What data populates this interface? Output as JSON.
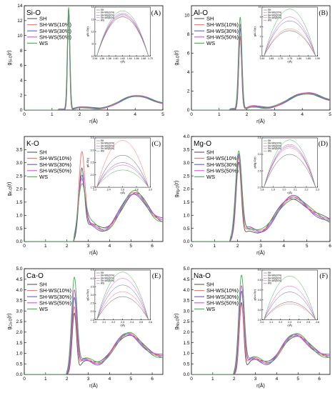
{
  "series_styles": [
    {
      "name": "SH",
      "color": "#555555"
    },
    {
      "name": "SH-WS(10%)",
      "color": "#ff6b6b"
    },
    {
      "name": "SH-WS(30%)",
      "color": "#5b5bd6"
    },
    {
      "name": "SH-WS(50%)",
      "color": "#e04ae0"
    },
    {
      "name": "WS",
      "color": "#3cb34a"
    }
  ],
  "chart_data": [
    {
      "type": "line",
      "panel_id": "(A)",
      "element_label": "Si-O",
      "xlabel": "r(Å)",
      "ylabel": "gSi-O(r)",
      "xlim": [
        0,
        5
      ],
      "ylim": [
        0,
        14
      ],
      "xticks": [
        0,
        1,
        2,
        3,
        4,
        5
      ],
      "yticks": [
        0,
        2,
        4,
        6,
        8,
        10,
        12,
        14
      ],
      "peak": {
        "r": 1.6,
        "heights": [
          13.2,
          13.3,
          13.4,
          13.5,
          13.7
        ],
        "width": 0.06
      },
      "features": {
        "min_r": 2.9,
        "min_g": 0.3,
        "second_r": 4.1,
        "second_g": 1.7
      },
      "inset": {
        "xlabel": "r(Å)",
        "ylabel": "gSi-O(r)",
        "xlim": [
          1.54,
          1.7
        ],
        "ylim": [
          10,
          14
        ],
        "xticks": [
          "1.54",
          "1.56",
          "1.58",
          "1.60",
          "1.62",
          "1.64",
          "1.66",
          "1.68",
          "1.70"
        ],
        "yticks": [
          "10",
          "11",
          "12",
          "13",
          "14"
        ],
        "legend": [
          "SH",
          "SH-WS(10%)",
          "SH-WS(30%)",
          "SH-WS(50%)",
          "WS"
        ]
      }
    },
    {
      "type": "line",
      "panel_id": "(B)",
      "element_label": "Al-O",
      "xlabel": "r(Å)",
      "ylabel": "gAl-O(r)",
      "xlim": [
        0,
        5
      ],
      "ylim": [
        0,
        11
      ],
      "xticks": [
        0,
        1,
        2,
        3,
        4,
        5
      ],
      "yticks": [
        0,
        2,
        4,
        6,
        8,
        10
      ],
      "peak": {
        "r": 1.76,
        "heights": [
          7.6,
          7.8,
          8.6,
          9.0,
          9.8
        ],
        "width": 0.08
      },
      "features": {
        "min_r": 2.9,
        "min_g": 0.35,
        "second_r": 4.2,
        "second_g": 1.55
      },
      "inset": {
        "xlabel": "r(Å)",
        "ylabel": "gAl-O(r)",
        "xlim": [
          1.6,
          1.9
        ],
        "ylim": [
          5,
          10
        ],
        "xticks": [
          "1.60",
          "1.65",
          "1.70",
          "1.75",
          "1.80",
          "1.85",
          "1.90"
        ],
        "yticks": [
          "5",
          "6",
          "7",
          "8",
          "9",
          "10"
        ],
        "legend": [
          "SH",
          "SH-WS(10%)",
          "SH-WS(30%)",
          "SH-WS(50%)",
          "WS"
        ]
      }
    },
    {
      "type": "line",
      "panel_id": "(C)",
      "element_label": "K-O",
      "xlabel": "r(Å)",
      "ylabel": "gK-O(r)",
      "xlim": [
        0,
        6.5
      ],
      "ylim": [
        0,
        4
      ],
      "xticks": [
        0,
        1,
        2,
        3,
        4,
        5,
        6
      ],
      "yticks": [
        0,
        0.5,
        1.0,
        1.5,
        2.0,
        2.5,
        3.0,
        3.5
      ],
      "peak": {
        "r": 2.7,
        "heights": [
          2.8,
          3.4,
          2.5,
          2.4,
          2.2
        ],
        "width": 0.22
      },
      "features": {
        "min_r": 3.7,
        "min_g": 0.5,
        "second_r": 5.1,
        "second_g": 1.4
      },
      "inset": {
        "xlabel": "r(Å)",
        "ylabel": "gK-O(r)",
        "xlim": [
          2.2,
          3.0
        ],
        "ylim": [
          1.5,
          3.5
        ],
        "xticks": [
          "2.2",
          "2.4",
          "2.6",
          "2.8",
          "3.0"
        ],
        "yticks": [
          "1.5",
          "2.0",
          "2.5",
          "3.0",
          "3.5"
        ],
        "legend": [
          "SH",
          "SH-WS(10%)",
          "SH-WS(30%)",
          "SH-WS(50%)",
          "WS"
        ]
      }
    },
    {
      "type": "line",
      "panel_id": "(D)",
      "element_label": "Mg-O",
      "xlabel": "r(Å)",
      "ylabel": "gMg-O(r)",
      "xlim": [
        0,
        6
      ],
      "ylim": [
        0,
        4
      ],
      "xticks": [
        0,
        1,
        2,
        3,
        4,
        5,
        6
      ],
      "yticks": [
        0,
        0.5,
        1.0,
        1.5,
        2.0,
        2.5,
        3.0,
        3.5,
        4.0
      ],
      "peak": {
        "r": 2.05,
        "heights": [
          3.0,
          3.2,
          3.25,
          3.3,
          3.45
        ],
        "width": 0.18
      },
      "features": {
        "min_r": 3.1,
        "min_g": 0.45,
        "second_r": 4.4,
        "second_g": 1.4
      },
      "inset": {
        "xlabel": "r(Å)",
        "ylabel": "gMg-O(r)",
        "xlim": [
          1.8,
          2.3
        ],
        "ylim": [
          2.0,
          3.5
        ],
        "xticks": [
          "1.8",
          "1.9",
          "2.0",
          "2.1",
          "2.2",
          "2.3"
        ],
        "yticks": [
          "2.0",
          "2.5",
          "3.0",
          "3.5"
        ],
        "legend": [
          "SH",
          "SH-WS(10%)",
          "SH-WS(30%)",
          "SH-WS(50%)",
          "WS"
        ]
      }
    },
    {
      "type": "line",
      "panel_id": "(E)",
      "element_label": "Ca-O",
      "xlabel": "r(Å)",
      "ylabel": "gCa-O(r)",
      "xlim": [
        0,
        6.5
      ],
      "ylim": [
        0,
        5
      ],
      "xticks": [
        0,
        1,
        2,
        3,
        4,
        5,
        6
      ],
      "yticks": [
        0,
        0.5,
        1.0,
        1.5,
        2.0,
        2.5,
        3.0,
        3.5,
        4.0,
        4.5,
        5.0
      ],
      "peak": {
        "r": 2.35,
        "heights": [
          2.9,
          3.2,
          3.6,
          4.0,
          4.6
        ],
        "width": 0.17
      },
      "features": {
        "min_r": 3.5,
        "min_g": 0.55,
        "second_r": 4.8,
        "second_g": 1.5
      },
      "inset": {
        "xlabel": "r(Å)",
        "ylabel": "gCa-O(r)",
        "xlim": [
          2.0,
          2.6
        ],
        "ylim": [
          1.5,
          4.5
        ],
        "xticks": [
          "2.0",
          "2.1",
          "2.2",
          "2.3",
          "2.4",
          "2.5",
          "2.6"
        ],
        "yticks": [
          "1.5",
          "2.0",
          "2.5",
          "3.0",
          "3.5",
          "4.0",
          "4.5"
        ],
        "legend": [
          "SH",
          "SH-WS(10%)",
          "SH-WS(30%)",
          "SH-WS(50%)",
          "WS"
        ]
      }
    },
    {
      "type": "line",
      "panel_id": "(F)",
      "element_label": "Na-O",
      "xlabel": "r(Å)",
      "ylabel": "gNa-O(r)",
      "xlim": [
        0,
        6.5
      ],
      "ylim": [
        0,
        5
      ],
      "xticks": [
        0,
        1,
        2,
        3,
        4,
        5,
        6
      ],
      "yticks": [
        0,
        0.5,
        1.0,
        1.5,
        2.0,
        2.5,
        3.0,
        3.5,
        4.0,
        4.5,
        5.0
      ],
      "peak": {
        "r": 2.35,
        "heights": [
          3.4,
          3.3,
          3.9,
          4.2,
          4.7
        ],
        "width": 0.17
      },
      "features": {
        "min_r": 3.6,
        "min_g": 0.55,
        "second_r": 4.8,
        "second_g": 1.45
      },
      "inset": {
        "xlabel": "r(Å)",
        "ylabel": "gNa-O(r)",
        "xlim": [
          2.0,
          2.6
        ],
        "ylim": [
          2.5,
          5.0
        ],
        "xticks": [
          "2.0",
          "2.1",
          "2.2",
          "2.3",
          "2.4",
          "2.5",
          "2.6"
        ],
        "yticks": [
          "2.5",
          "3.0",
          "3.5",
          "4.0",
          "4.5",
          "5.0"
        ],
        "legend": [
          "SH",
          "SH-WS(10%)",
          "SH-WS(30%)",
          "SH-WS(50%)",
          "WS"
        ]
      }
    }
  ]
}
